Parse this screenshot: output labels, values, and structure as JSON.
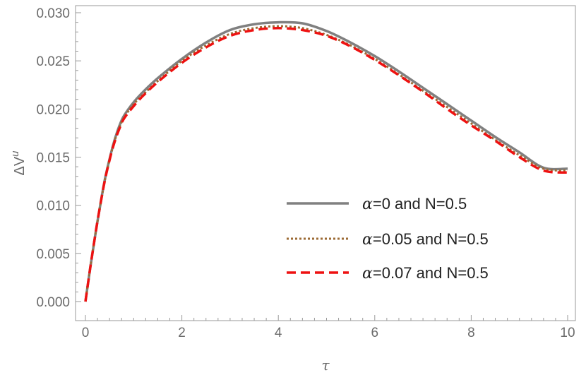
{
  "chart_data": {
    "type": "line",
    "xlabel": "τ",
    "ylabel": {
      "base": "ΔV",
      "superscript": "u"
    },
    "xlim": [
      0,
      10
    ],
    "ylim": [
      0.0,
      0.03
    ],
    "xticks": [
      0,
      2,
      4,
      6,
      8,
      10
    ],
    "xtick_labels": [
      "0",
      "2",
      "4",
      "6",
      "8",
      "10"
    ],
    "yticks": [
      0.0,
      0.005,
      0.01,
      0.015,
      0.02,
      0.025,
      0.03
    ],
    "ytick_labels": [
      "0.000",
      "0.005",
      "0.010",
      "0.015",
      "0.020",
      "0.025",
      "0.030"
    ],
    "grid": false,
    "legend_position": "bottom-right",
    "series": [
      {
        "name": "α=0 and N=0.5",
        "name_symbol": "α",
        "name_rest": "=0 and N=0.5",
        "color": "#808080",
        "style": "solid",
        "x": [
          0,
          0.1,
          0.2,
          0.3,
          0.4,
          0.5,
          0.6,
          0.7,
          0.8,
          1.0,
          1.2,
          1.5,
          2.0,
          2.5,
          3.0,
          3.5,
          4.0,
          4.5,
          5.0,
          5.5,
          6.0,
          6.5,
          7.0,
          7.5,
          8.0,
          8.5,
          9.0,
          9.5,
          10.0
        ],
        "y": [
          0.0,
          0.0035,
          0.0068,
          0.0098,
          0.0126,
          0.0148,
          0.0167,
          0.0182,
          0.0193,
          0.0207,
          0.0218,
          0.0232,
          0.0252,
          0.0269,
          0.0282,
          0.0288,
          0.029,
          0.0289,
          0.0281,
          0.0269,
          0.0255,
          0.0239,
          0.0222,
          0.0205,
          0.0188,
          0.0171,
          0.0155,
          0.0139,
          0.0138
        ]
      },
      {
        "name": "α=0.05 and N=0.5",
        "name_symbol": "α",
        "name_rest": "=0.05 and N=0.5",
        "color": "#9c6b36",
        "style": "dotted",
        "x": [
          0,
          0.1,
          0.2,
          0.3,
          0.4,
          0.5,
          0.6,
          0.7,
          0.8,
          1.0,
          1.2,
          1.5,
          2.0,
          2.5,
          3.0,
          3.5,
          4.0,
          4.5,
          5.0,
          5.5,
          6.0,
          6.5,
          7.0,
          7.5,
          8.0,
          8.5,
          9.0,
          9.5,
          10.0
        ],
        "y": [
          0.0,
          0.0035,
          0.0068,
          0.0098,
          0.0125,
          0.0147,
          0.0166,
          0.018,
          0.0191,
          0.0205,
          0.0215,
          0.0229,
          0.025,
          0.0266,
          0.0278,
          0.0284,
          0.0286,
          0.0284,
          0.0277,
          0.0266,
          0.0252,
          0.0236,
          0.0219,
          0.0202,
          0.0185,
          0.0168,
          0.0152,
          0.0138,
          0.0136
        ]
      },
      {
        "name": "α=0.07 and N=0.5",
        "name_symbol": "α",
        "name_rest": "=0.07 and N=0.5",
        "color": "#ee1111",
        "style": "dashed",
        "x": [
          0,
          0.1,
          0.2,
          0.3,
          0.4,
          0.5,
          0.6,
          0.7,
          0.8,
          1.0,
          1.2,
          1.5,
          2.0,
          2.5,
          3.0,
          3.5,
          4.0,
          4.5,
          5.0,
          5.5,
          6.0,
          6.5,
          7.0,
          7.5,
          8.0,
          8.5,
          9.0,
          9.5,
          10.0
        ],
        "y": [
          0.0,
          0.0035,
          0.0068,
          0.0098,
          0.0125,
          0.0147,
          0.0165,
          0.0179,
          0.019,
          0.0203,
          0.0214,
          0.0228,
          0.0248,
          0.0264,
          0.0276,
          0.0282,
          0.0284,
          0.0282,
          0.0276,
          0.0265,
          0.0251,
          0.0235,
          0.0218,
          0.02,
          0.0183,
          0.0167,
          0.015,
          0.0136,
          0.0134
        ]
      }
    ]
  }
}
